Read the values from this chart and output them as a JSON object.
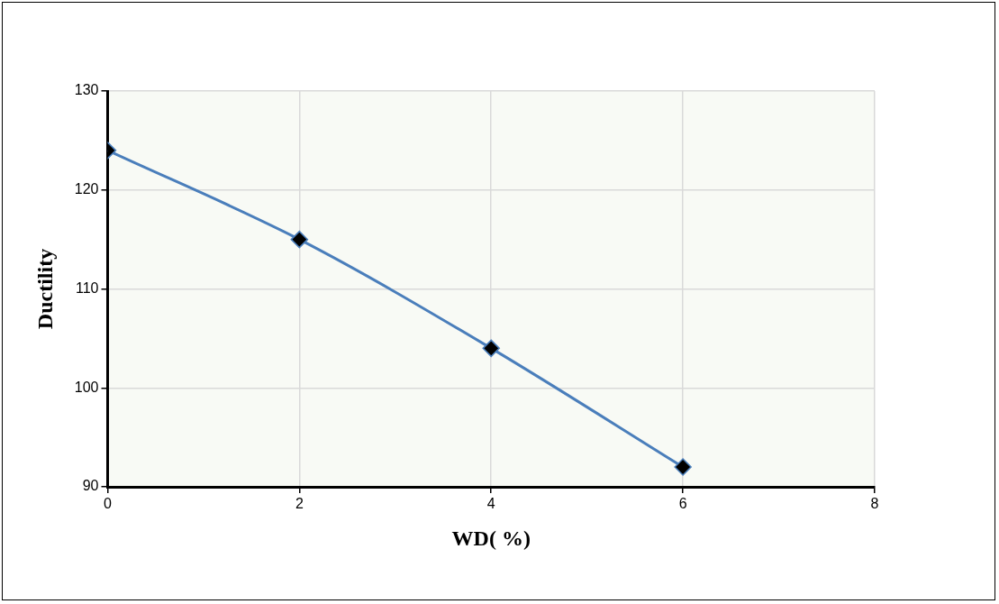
{
  "chart_data": {
    "type": "line",
    "xlabel": "WD( %)",
    "ylabel": "Ductility",
    "x": [
      0,
      2,
      4,
      6
    ],
    "series": [
      {
        "color": "#4a7ebb",
        "values": [
          124,
          115,
          104,
          92
        ]
      }
    ],
    "xlim": [
      0,
      8
    ],
    "xticks": [
      0,
      2,
      4,
      6,
      8
    ],
    "ylim": [
      90,
      130
    ],
    "yticks": [
      90,
      100,
      110,
      120,
      130
    ],
    "grid": true,
    "legend": false,
    "marker": "diamond",
    "line_style": "solid"
  }
}
